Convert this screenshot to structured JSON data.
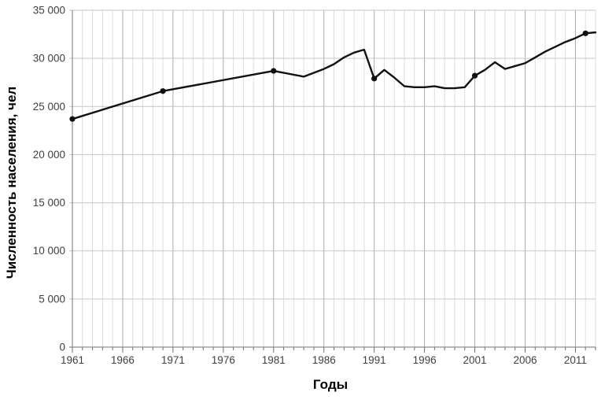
{
  "chart_data": {
    "type": "line",
    "title": "",
    "xlabel": "Годы",
    "ylabel": "Численность населения, чел",
    "xlim": [
      1961,
      2013
    ],
    "ylim": [
      0,
      35000
    ],
    "grid": true,
    "legend": "none",
    "x_ticks": [
      1961,
      1966,
      1971,
      1976,
      1981,
      1986,
      1991,
      1996,
      2001,
      2006,
      2011
    ],
    "y_ticks": [
      0,
      5000,
      10000,
      15000,
      20000,
      25000,
      30000,
      35000
    ],
    "y_tick_labels": [
      "0",
      "5 000",
      "10 000",
      "15 000",
      "20 000",
      "25 000",
      "30 000",
      "35 000"
    ],
    "marker_years": [
      1961,
      1970,
      1981,
      1991,
      2001,
      2012
    ],
    "series": [
      {
        "name": "Численность населения",
        "points": [
          [
            1961,
            23700
          ],
          [
            1970,
            26600
          ],
          [
            1981,
            28700
          ],
          [
            1984,
            28100
          ],
          [
            1985,
            28500
          ],
          [
            1986,
            28900
          ],
          [
            1987,
            29400
          ],
          [
            1988,
            30100
          ],
          [
            1989,
            30600
          ],
          [
            1990,
            30900
          ],
          [
            1991,
            27900
          ],
          [
            1992,
            28800
          ],
          [
            1993,
            28000
          ],
          [
            1994,
            27100
          ],
          [
            1995,
            27000
          ],
          [
            1996,
            27000
          ],
          [
            1997,
            27100
          ],
          [
            1998,
            26900
          ],
          [
            1999,
            26900
          ],
          [
            2000,
            27000
          ],
          [
            2001,
            28200
          ],
          [
            2002,
            28800
          ],
          [
            2003,
            29600
          ],
          [
            2004,
            28900
          ],
          [
            2005,
            29200
          ],
          [
            2006,
            29500
          ],
          [
            2007,
            30100
          ],
          [
            2008,
            30700
          ],
          [
            2009,
            31200
          ],
          [
            2010,
            31700
          ],
          [
            2011,
            32100
          ],
          [
            2012,
            32600
          ],
          [
            2013,
            32700
          ]
        ]
      }
    ]
  },
  "colors": {
    "line": "#111111",
    "marker": "#111111",
    "minor_grid": "#dddddd",
    "major_grid": "#aaaaaa",
    "h_grid": "#c6c6c6",
    "axis": "#8c8c8c",
    "tick": "#6e6e6e",
    "tick_text": "#404040",
    "title_text": "#000000",
    "background": "#ffffff"
  }
}
